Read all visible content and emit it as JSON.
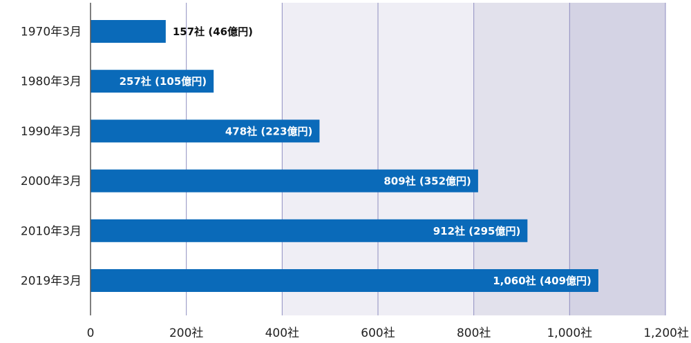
{
  "chart_data": {
    "type": "bar",
    "orientation": "horizontal",
    "categories": [
      "1970年3月",
      "1980年3月",
      "1990年3月",
      "2000年3月",
      "2010年3月",
      "2019年3月"
    ],
    "values": [
      157,
      257,
      478,
      809,
      912,
      1060
    ],
    "data_labels": [
      "157社 (46億円)",
      "257社 (105億円)",
      "478社 (223億円)",
      "809社 (352億円)",
      "912社 (295億円)",
      "1,060社 (409億円)"
    ],
    "xlim": [
      0,
      1200
    ],
    "x_ticks": [
      0,
      200,
      400,
      600,
      800,
      1000,
      1200
    ],
    "x_tick_labels": [
      "0",
      "200社",
      "400社",
      "600社",
      "800社",
      "1,000社",
      "1,200社"
    ],
    "title": "",
    "xlabel": "",
    "ylabel": "",
    "grid": true,
    "colors": {
      "bar": "#0a6ab9",
      "band_400_800": "#efeef5",
      "band_800_1000": "#e2e1ec",
      "band_1000_1200": "#d4d3e4",
      "gridline": "#8e8dc0",
      "axis": "#555555",
      "label_inside": "#ffffff",
      "label_outside": "#111111"
    }
  }
}
